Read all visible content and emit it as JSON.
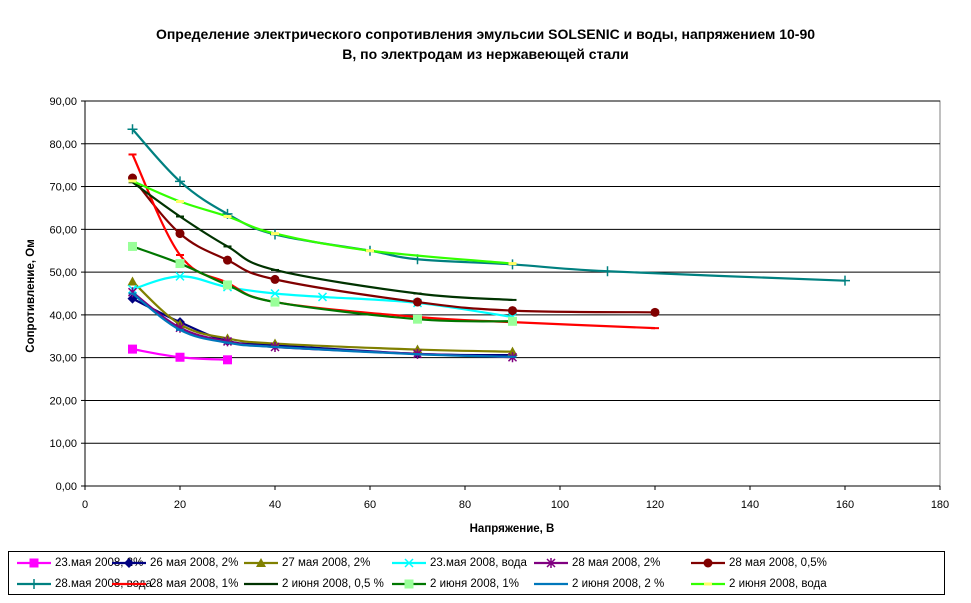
{
  "chart_data": {
    "type": "line",
    "title": "Определение электрического сопротивления эмульсии SOLSENIC и воды, напряжением 10-90 В, по электродам из нержавеющей стали",
    "title_lines": [
      "Определение электрического сопротивления эмульсии SOLSENIC и воды, напряжением 10-90",
      "В, по электродам из нержавеющей стали"
    ],
    "xlabel": "Напряжение, В",
    "ylabel": "Сопротивление, Ом",
    "xlim": [
      0,
      180
    ],
    "ylim": [
      0,
      90
    ],
    "xticks": [
      "0",
      "20",
      "40",
      "60",
      "80",
      "100",
      "120",
      "140",
      "160",
      "180"
    ],
    "yticks": [
      "0,00",
      "10,00",
      "20,00",
      "30,00",
      "40,00",
      "50,00",
      "60,00",
      "70,00",
      "80,00",
      "90,00"
    ],
    "grid": "horizontal",
    "legend_position": "bottom",
    "series": [
      {
        "name": "23.мая 2008, 2%",
        "color": "#ff00ff",
        "marker": "square",
        "x": [
          10,
          20,
          30
        ],
        "y": [
          32.0,
          30.1,
          29.5
        ]
      },
      {
        "name": "26 мая 2008, 2%",
        "color": "#000080",
        "marker": "diamond",
        "x": [
          10,
          20,
          30,
          40,
          70,
          90
        ],
        "y": [
          43.8,
          38.3,
          33.9,
          32.9,
          30.9,
          30.6
        ]
      },
      {
        "name": "27 мая 2008, 2%",
        "color": "#808000",
        "marker": "triangle",
        "x": [
          10,
          20,
          30,
          40,
          70,
          90
        ],
        "y": [
          47.8,
          37.8,
          34.5,
          33.3,
          31.9,
          31.4
        ]
      },
      {
        "name": "23.мая 2008, вода",
        "color": "#00ffff",
        "marker": "x",
        "x": [
          10,
          20,
          30,
          40,
          50,
          70,
          90
        ],
        "y": [
          46.0,
          49.0,
          46.5,
          45.0,
          44.2,
          42.8,
          39.5
        ]
      },
      {
        "name": "28 мая 2008, 2%",
        "color": "#800080",
        "marker": "star",
        "x": [
          10,
          20,
          30,
          40,
          70,
          90
        ],
        "y": [
          45.3,
          37.0,
          33.8,
          32.5,
          30.9,
          30.1
        ]
      },
      {
        "name": "28 мая 2008, 0,5%",
        "color": "#800000",
        "marker": "circle",
        "x": [
          10,
          20,
          30,
          40,
          70,
          90,
          120
        ],
        "y": [
          72.0,
          59.0,
          52.8,
          48.3,
          43.0,
          41.0,
          40.6
        ]
      },
      {
        "name": "28.мая 2008, вода",
        "color": "#008080",
        "marker": "plus",
        "x": [
          10,
          20,
          30,
          40,
          60,
          70,
          90,
          110,
          160
        ],
        "y": [
          83.4,
          71.2,
          63.6,
          58.8,
          55.0,
          53.0,
          51.8,
          50.2,
          48.0
        ]
      },
      {
        "name": "28 мая 2008, 1%",
        "color": "#ff0000",
        "marker": "dash",
        "x": [
          10,
          20,
          30,
          40,
          70,
          90,
          120
        ],
        "y": [
          77.5,
          54.0,
          47.5,
          43.0,
          39.5,
          38.3,
          36.9
        ]
      },
      {
        "name": "2 июня 2008, 0,5 %",
        "color": "#003300",
        "marker": "dash",
        "x": [
          10,
          20,
          30,
          40,
          70,
          90
        ],
        "y": [
          71.0,
          63.0,
          56.0,
          50.5,
          45.0,
          43.5
        ]
      },
      {
        "name": "2 июня 2008, 1%",
        "color": "#007700",
        "marker": "square-light",
        "x": [
          10,
          20,
          30,
          40,
          70,
          90
        ],
        "y": [
          56.0,
          52.0,
          47.0,
          43.0,
          39.0,
          38.5
        ]
      },
      {
        "name": "2 июня 2008, 2 %",
        "color": "#0077bb",
        "marker": "dash",
        "x": [
          10,
          20,
          30,
          40,
          70,
          90
        ],
        "y": [
          45.0,
          36.5,
          33.5,
          32.5,
          30.8,
          30.2
        ]
      },
      {
        "name": "2 июня 2008, вода",
        "color": "#33ff00",
        "marker": "dash-yellow",
        "x": [
          10,
          20,
          30,
          40,
          60,
          90
        ],
        "y": [
          71.3,
          66.5,
          63.0,
          59.0,
          55.0,
          52.0
        ]
      }
    ]
  }
}
